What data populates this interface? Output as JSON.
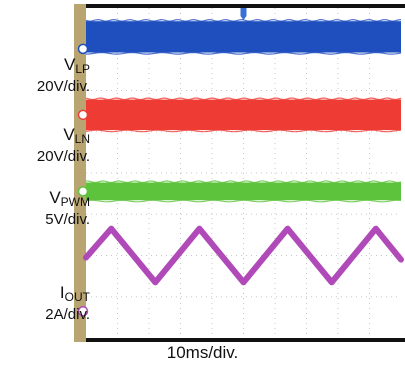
{
  "chart_data": {
    "type": "line",
    "title": "",
    "timebase": "10ms/div.",
    "grid": true,
    "divisions": {
      "x": 10,
      "y": 8
    },
    "colors": {
      "frame": "#b9a572",
      "grid": "#c8c8c8",
      "background": "#ffffff"
    },
    "series": [
      {
        "name": "V",
        "subscript": "LP",
        "scale": "20V/div.",
        "marker": "1",
        "color": "#1f4fbf",
        "kind": "switching-band",
        "band_div": [
          0.32,
          1.08
        ]
      },
      {
        "name": "V",
        "subscript": "LN",
        "scale": "20V/div.",
        "marker": "2",
        "color": "#ee3b34",
        "kind": "switching-band",
        "band_div": [
          2.22,
          2.96
        ]
      },
      {
        "name": "V",
        "subscript": "PWM",
        "scale": "5V/div.",
        "marker": "3",
        "color": "#5ec33c",
        "kind": "switching-band",
        "band_div": [
          4.23,
          4.66
        ]
      },
      {
        "name": "I",
        "subscript": "OUT",
        "scale": "2A/div.",
        "marker": "4",
        "color": "#b04ab8",
        "kind": "triangle",
        "x_div": [
          0,
          0.8,
          2.2,
          3.6,
          5.0,
          6.4,
          7.8,
          9.2,
          10.0
        ],
        "y_div": [
          6.05,
          5.35,
          6.65,
          5.35,
          6.65,
          5.35,
          6.65,
          5.35,
          6.1
        ]
      }
    ]
  }
}
